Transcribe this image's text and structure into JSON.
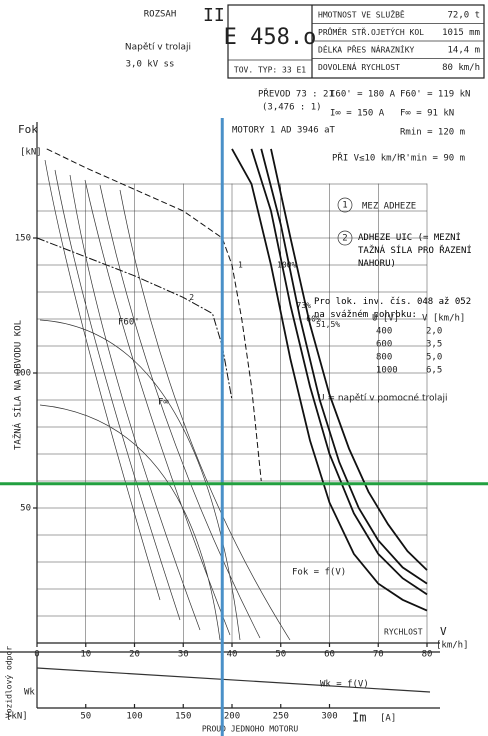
{
  "header": {
    "range_label": "ROZSAH",
    "range": "II",
    "voltage_label": "Napětí v trolaji",
    "voltage": "3,0 kV ss",
    "model": "E 458.o",
    "factory_type": "TOV. TYP: 33 E1"
  },
  "specs": [
    [
      "HMOTNOST VE SLUŽBĚ",
      "72,0 t"
    ],
    [
      "PRŮMĚR STŘ.OJETÝCH KOL",
      "1015 mm"
    ],
    [
      "DÉLKA PŘES NÁRAZNÍKY",
      "14,4 m"
    ],
    [
      "DOVOLENÁ RYCHLOST",
      "80 km/h"
    ]
  ],
  "drive": {
    "gear": "PŘEVOD 73 : 21",
    "ratio": "(3,476 : 1)",
    "motors": "MOTORY 1 AD 3946 aT",
    "i60": "I60' = 180 A",
    "iinf": "I∞ = 150 A",
    "f60": "F60' = 119 kN",
    "finf": "F∞ = 91 kN",
    "rmin": "Rmin = 120 m",
    "low_speed": "PŘI V≤10 km/h",
    "rmin2": "R'min = 90 m"
  },
  "notes": [
    {
      "num": "1",
      "text": "MEZ ADHEZE"
    },
    {
      "num": "2",
      "text": "ADHEZE UIC (= MEZNÍ TAŽNÁ SÍLA PRO ŘAZENÍ NAHORU)"
    }
  ],
  "hump_table": {
    "caption": "Pro lok. inv. čís. 048 až 052 na svážném pohrbku:",
    "header": [
      "U [V]",
      "V [km/h]"
    ],
    "rows": [
      [
        "400",
        "2,0"
      ],
      [
        "600",
        "3,5"
      ],
      [
        "800",
        "5,0"
      ],
      [
        "1000",
        "6,5"
      ]
    ]
  },
  "aux_note": "U = napětí v pomocné trolaji",
  "chart_data": {
    "type": "line",
    "y_label": "TAŽNÁ SÍLA NA OBVODU KOL",
    "y_symbol": "Fok",
    "y_unit": "[kN]",
    "x_symbol": "V",
    "x_unit": "[km/h]",
    "x_label": "RYCHLOST",
    "xlim": [
      0,
      80
    ],
    "xticks": [
      0,
      10,
      20,
      30,
      40,
      50,
      60,
      70,
      80
    ],
    "ylim": [
      0,
      185
    ],
    "yticks": [
      50,
      100,
      150
    ],
    "ygrid": [
      10,
      20,
      30,
      40,
      50,
      60,
      70,
      80,
      90,
      100,
      110,
      120,
      130,
      140,
      150,
      160,
      170
    ],
    "xgrid": [
      10,
      20,
      30,
      40,
      50,
      60,
      70,
      80
    ],
    "grid": true,
    "curve_label": "Fok = f(V)",
    "f60_label": "F60'",
    "finf_label": "F∞",
    "series": [
      {
        "name": "100%",
        "color": "#111",
        "x": [
          40,
          44,
          48,
          52,
          56,
          60,
          65,
          70,
          75,
          80
        ],
        "values": [
          183,
          170,
          140,
          105,
          75,
          52,
          33,
          22,
          16,
          12
        ]
      },
      {
        "name": "73%",
        "color": "#111",
        "x": [
          44,
          48,
          52,
          56,
          60,
          65,
          70,
          75,
          80
        ],
        "values": [
          183,
          160,
          125,
          95,
          70,
          48,
          33,
          24,
          18
        ]
      },
      {
        "name": "60%",
        "color": "#111",
        "x": [
          46,
          50,
          54,
          58,
          62,
          66,
          70,
          75,
          80
        ],
        "values": [
          183,
          155,
          120,
          90,
          67,
          50,
          38,
          28,
          22
        ]
      },
      {
        "name": "51,5%",
        "color": "#111",
        "x": [
          48,
          52,
          56,
          60,
          64,
          68,
          72,
          76,
          80
        ],
        "values": [
          183,
          150,
          118,
          92,
          72,
          56,
          44,
          34,
          27
        ]
      },
      {
        "name": "1",
        "color": "#111",
        "dash": "6 3",
        "x": [
          2,
          10,
          20,
          30,
          38,
          40,
          42,
          44,
          46
        ],
        "values": [
          183,
          176,
          168,
          160,
          150,
          140,
          120,
          95,
          60
        ]
      },
      {
        "name": "2",
        "color": "#111",
        "dash": "8 2 2 2",
        "x": [
          0,
          10,
          20,
          30,
          36,
          38,
          40
        ],
        "values": [
          150,
          143,
          136,
          128,
          122,
          110,
          90
        ]
      }
    ],
    "marker_v": 38,
    "marker_v_color": "#4a90c8",
    "marker_f": 59,
    "marker_f_color": "#22a040",
    "current_label": "Im",
    "current_unit": "[A]",
    "current_title": "PROUD JEDNOHO MOTORU",
    "ilim": [
      0,
      400
    ],
    "iticks": [
      50,
      100,
      150,
      200,
      250,
      300
    ],
    "resistance_label": "Vozidlový odpor",
    "resistance_symbol": "Wk",
    "resistance_unit": "[kN]",
    "resistance_curve": "Wk = f(V)"
  }
}
